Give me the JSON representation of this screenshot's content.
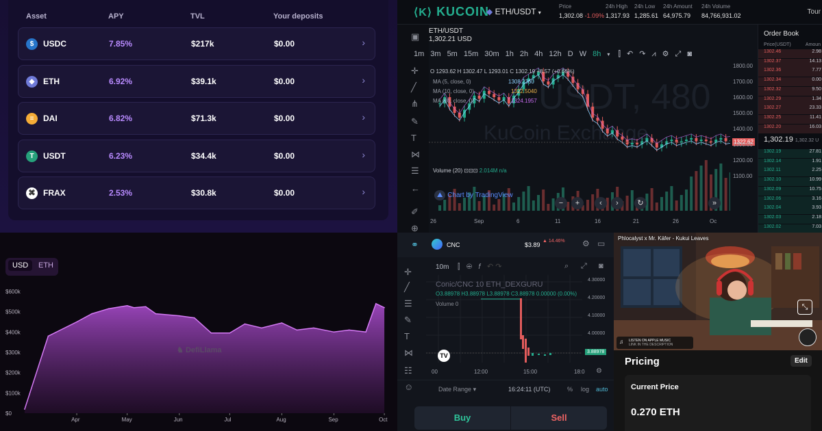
{
  "assets_table": {
    "headers": [
      "Asset",
      "APY",
      "TVL",
      "Your deposits"
    ],
    "rows": [
      {
        "asset": "USDC",
        "apy": "7.85%",
        "tvl": "$217k",
        "deposits": "$0.00",
        "icon": "usdc-icon",
        "color": "#2775ca"
      },
      {
        "asset": "ETH",
        "apy": "6.92%",
        "tvl": "$39.1k",
        "deposits": "$0.00",
        "icon": "eth-icon",
        "color": "#6f7ad8"
      },
      {
        "asset": "DAI",
        "apy": "6.82%",
        "tvl": "$71.3k",
        "deposits": "$0.00",
        "icon": "dai-icon",
        "color": "#f5ac37"
      },
      {
        "asset": "USDT",
        "apy": "6.23%",
        "tvl": "$34.4k",
        "deposits": "$0.00",
        "icon": "usdt-icon",
        "color": "#26a17b"
      },
      {
        "asset": "FRAX",
        "apy": "2.53%",
        "tvl": "$30.8k",
        "deposits": "$0.00",
        "icon": "frax-icon",
        "color": "#ffffff"
      }
    ]
  },
  "kucoin": {
    "logo": "KUCOIN",
    "pair_selector": "ETH/USDT",
    "stats": [
      {
        "label": "Price",
        "value": "1,302.08",
        "change": "-1.09%"
      },
      {
        "label": "24h High",
        "value": "1,317.93"
      },
      {
        "label": "24h Low",
        "value": "1,285.61"
      },
      {
        "label": "24h Amount",
        "value": "64,975.79"
      },
      {
        "label": "24h Volume",
        "value": "84,766,931.02"
      }
    ],
    "tour": "Tour",
    "chart_pair": "ETH/USDT",
    "chart_price": "1,302.21 USD",
    "timeframes": [
      "1m",
      "3m",
      "5m",
      "15m",
      "30m",
      "1h",
      "2h",
      "4h",
      "12h",
      "D",
      "W",
      "8h"
    ],
    "active_timeframe": "8h",
    "ohlc": "O 1293.62  H 1302.47  L 1293.01  C 1302.19  +8.57 (+0.66%)",
    "ma_lines": [
      {
        "label": "MA (5, close, 0)",
        "value": "1308.2360",
        "color": "#8fd1ff"
      },
      {
        "label": "MA (10, close, 0)",
        "value": "1322.5040",
        "color": "#f2b84b"
      },
      {
        "label": "MA (30, close, 0)",
        "value": "1324.1957",
        "color": "#c86cf0"
      }
    ],
    "watermark_big": "USDT, 480",
    "watermark": "KuCoin Exchange",
    "volume_label": "Volume (20)",
    "volume_value": "2.014M  n/a",
    "tradingview": "Chart by TradingView",
    "last_price_tag": "1322.62",
    "y_ticks": [
      "1800.00",
      "1700.00",
      "1600.00",
      "1500.00",
      "1400.00",
      "1300.00",
      "1200.00",
      "1100.00"
    ],
    "x_ticks": [
      "26",
      "Sep",
      "6",
      "11",
      "16",
      "21",
      "26",
      "Oc"
    ],
    "orderbook": {
      "title": "Order Book",
      "price_header": "Price(USDT)",
      "amount_header": "Amoun",
      "asks": [
        {
          "price": "1302.46",
          "amount": "2.98"
        },
        {
          "price": "1302.37",
          "amount": "14.13"
        },
        {
          "price": "1302.36",
          "amount": "7.77"
        },
        {
          "price": "1302.34",
          "amount": "0.00"
        },
        {
          "price": "1302.32",
          "amount": "9.50"
        },
        {
          "price": "1302.29",
          "amount": "1.34"
        },
        {
          "price": "1302.27",
          "amount": "23.33"
        },
        {
          "price": "1302.25",
          "amount": "11.41"
        },
        {
          "price": "1302.20",
          "amount": "16.03"
        }
      ],
      "mid_price": "1,302.19",
      "mid_sub": "1,302.32 U",
      "bids": [
        {
          "price": "1302.19",
          "amount": "27.81"
        },
        {
          "price": "1302.14",
          "amount": "1.91"
        },
        {
          "price": "1302.11",
          "amount": "2.25"
        },
        {
          "price": "1302.10",
          "amount": "10.99"
        },
        {
          "price": "1302.09",
          "amount": "10.75"
        },
        {
          "price": "1302.06",
          "amount": "3.16"
        },
        {
          "price": "1302.04",
          "amount": "3.93"
        },
        {
          "price": "1302.03",
          "amount": "2.18"
        },
        {
          "price": "1302.02",
          "amount": "7.03"
        }
      ]
    }
  },
  "tvl_chart": {
    "toggle": [
      "USD",
      "ETH"
    ],
    "active": "USD",
    "watermark": "DefiLlama",
    "chart_data": {
      "type": "area",
      "x": [
        "2022-03-01",
        "2022-03-15",
        "2022-04-01",
        "2022-04-10",
        "2022-04-20",
        "2022-05-01",
        "2022-05-05",
        "2022-05-12",
        "2022-05-18",
        "2022-06-01",
        "2022-06-10",
        "2022-06-20",
        "2022-07-01",
        "2022-07-10",
        "2022-07-20",
        "2022-08-01",
        "2022-08-10",
        "2022-08-20",
        "2022-09-01",
        "2022-09-10",
        "2022-09-20",
        "2022-09-26",
        "2022-10-01"
      ],
      "values": [
        20000,
        380000,
        450000,
        490000,
        515000,
        530000,
        520000,
        525000,
        490000,
        480000,
        470000,
        395000,
        395000,
        440000,
        420000,
        445000,
        410000,
        420000,
        400000,
        410000,
        400000,
        540000,
        520000
      ],
      "y_ticks": [
        "$0",
        "$100k",
        "$200k",
        "$300k",
        "$400k",
        "$500k",
        "$600k"
      ],
      "x_ticks": [
        "Apr",
        "May",
        "Jun",
        "Jul",
        "Aug",
        "Sep",
        "Oct"
      ],
      "ylim": [
        0,
        600000
      ],
      "color": "#b14fd6"
    }
  },
  "dex": {
    "token": "CNC",
    "price": "$3.89",
    "change": "14.46%",
    "interval": "10m",
    "title": "Conic/CNC  10  ETH_DEXGURU",
    "ohlc": [
      "O3.88978",
      "H3.88978",
      "L3.88978",
      "C3.88978  0.00000 (0.00%)"
    ],
    "volume": "Volume  0",
    "y_ticks": [
      "4.30000",
      "4.20000",
      "4.10000",
      "4.00000"
    ],
    "last_price": "3.88978",
    "x_ticks": [
      "00",
      "12:00",
      "15:00",
      "18:0"
    ],
    "date_range": "Date Range",
    "time": "16:24:11 (UTC)",
    "scale_opts": [
      "%",
      "log",
      "auto"
    ],
    "buy": "Buy",
    "sell": "Sell"
  },
  "nft": {
    "track": "Phlocalyst x Mr. Käfer - Kukui Leaves",
    "apple_line1": "LISTEN ON APPLE MUSIC",
    "apple_line2": "LINK IN THE DESCRIPTION",
    "pricing_title": "Pricing",
    "edit": "Edit",
    "current_price_label": "Current Price",
    "current_price": "0.270 ETH"
  }
}
